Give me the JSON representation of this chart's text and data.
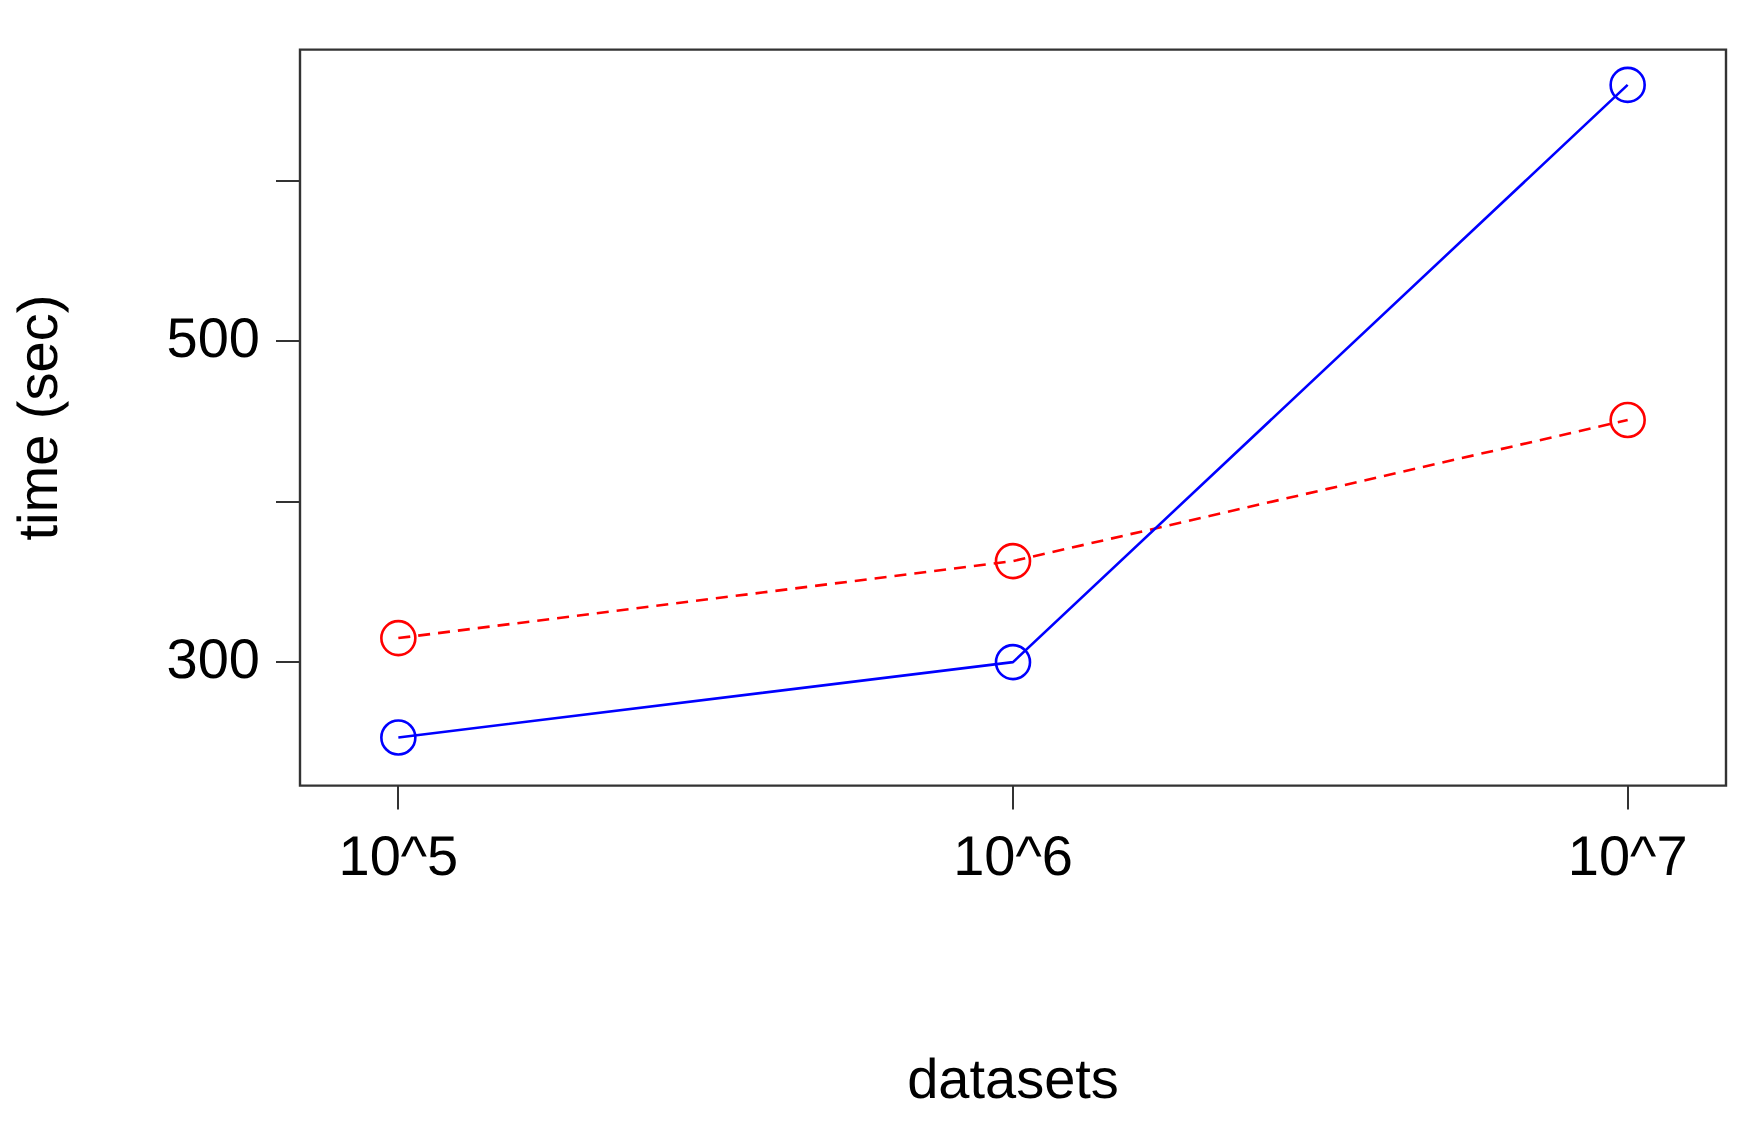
{
  "chart_data": {
    "type": "line",
    "xlabel": "datasets",
    "ylabel": "time (sec)",
    "categories": [
      "10^5",
      "10^6",
      "10^7"
    ],
    "ylim": [
      223,
      682
    ],
    "yticks": [
      300,
      {
        "value": 400,
        "label": null
      },
      500,
      {
        "value": 600,
        "label": null
      }
    ],
    "series": [
      {
        "color": "#0000ff",
        "values": [
          253,
          300,
          660
        ],
        "line_style": "solid"
      },
      {
        "color": "#ff0000",
        "values": [
          315,
          363,
          451
        ],
        "line_style": "dashed"
      }
    ],
    "marker": "circle",
    "grid": false,
    "legend": false
  }
}
